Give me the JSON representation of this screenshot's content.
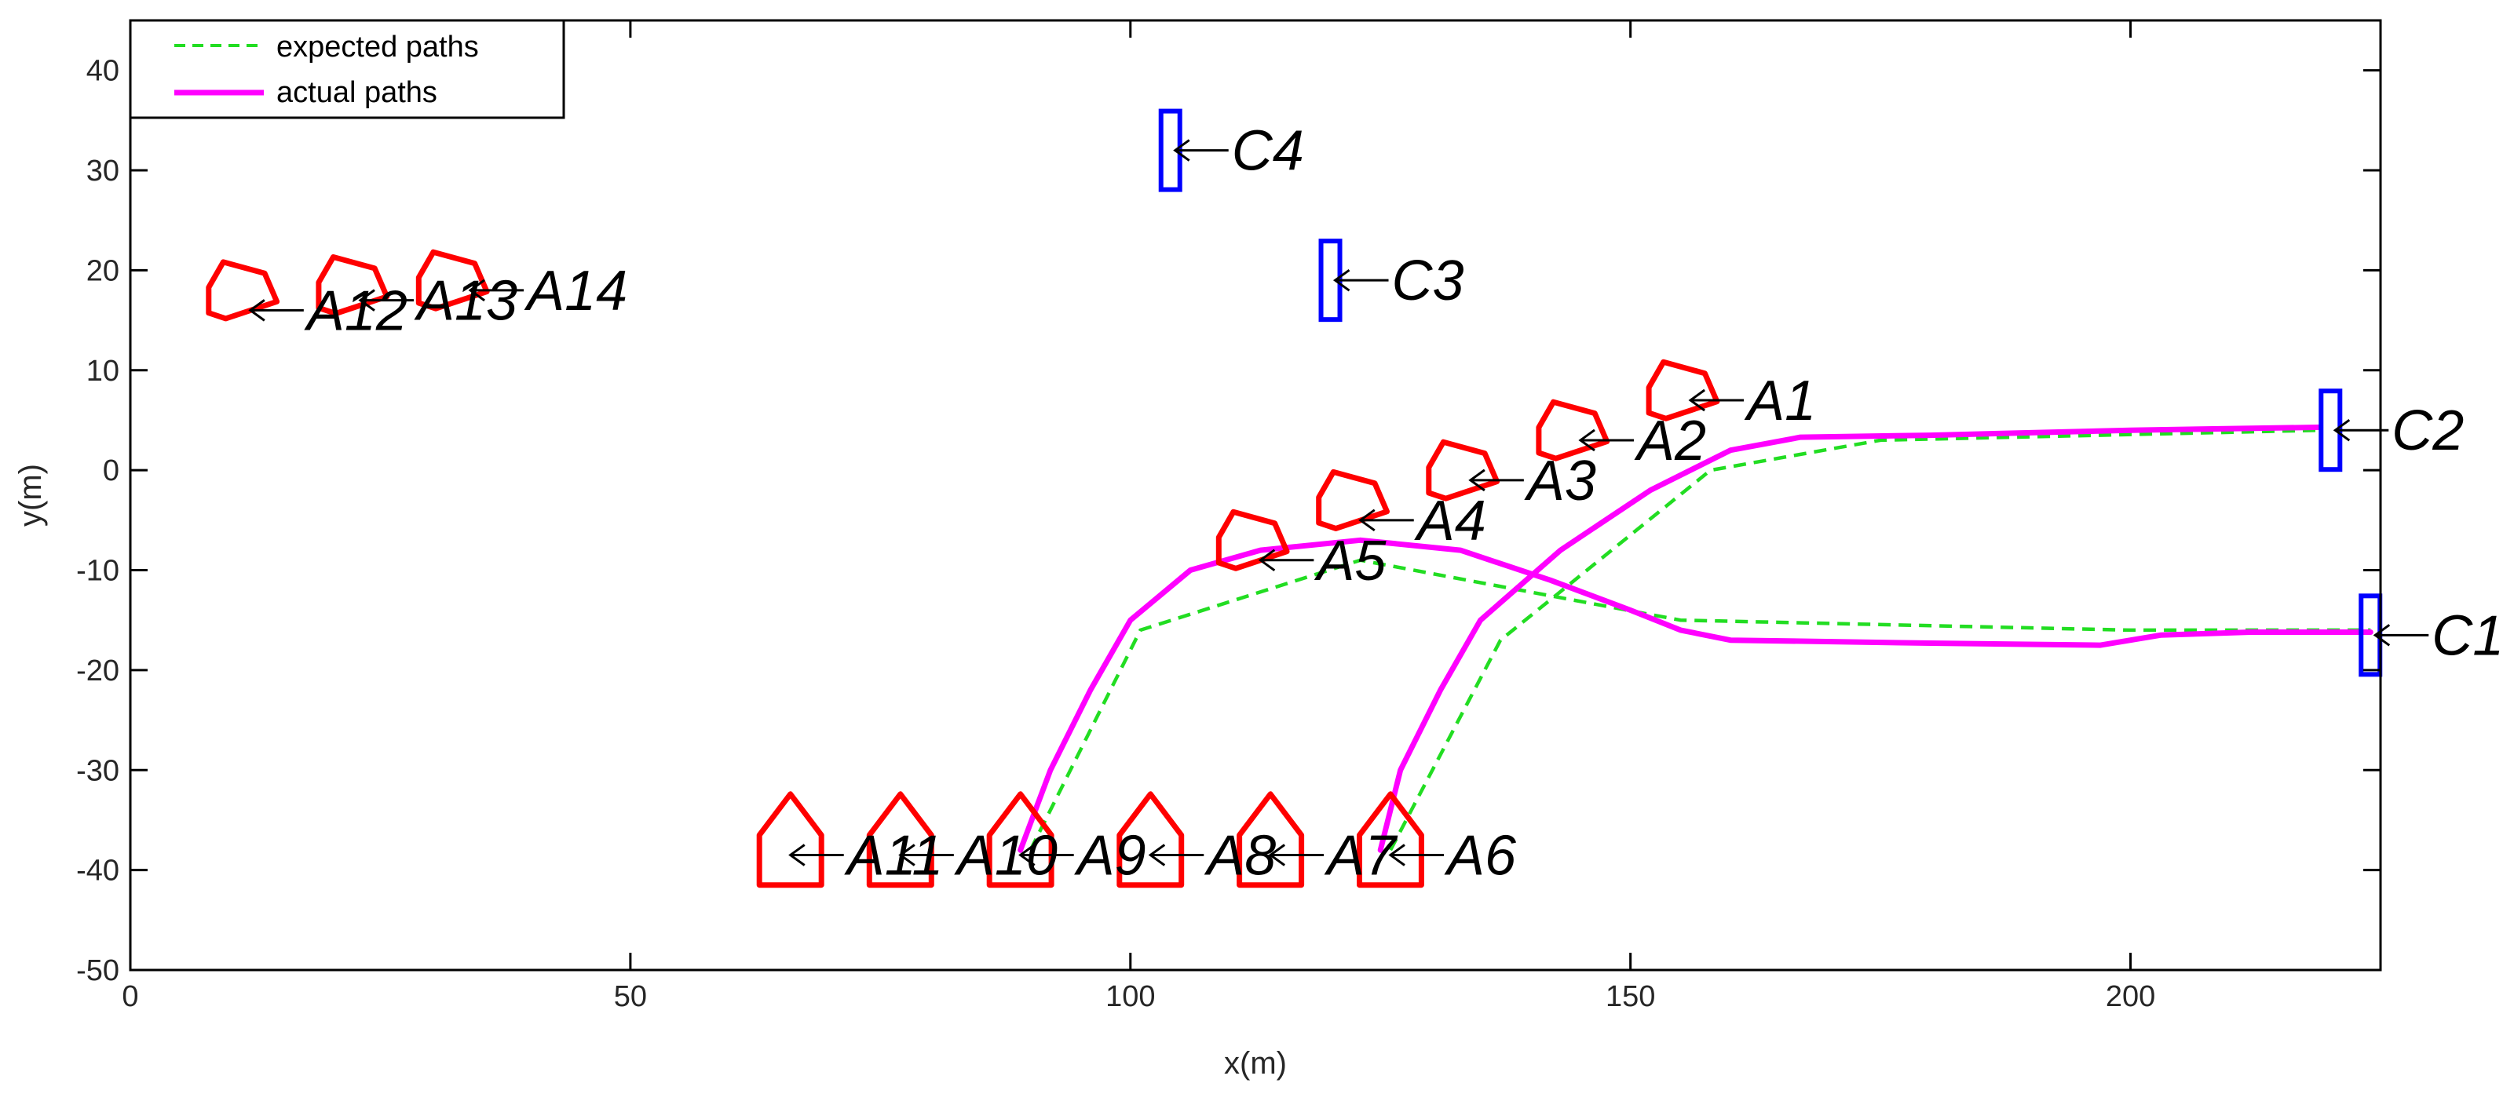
{
  "chart_data": {
    "type": "line",
    "xlabel": "x(m)",
    "ylabel": "y(m)",
    "xlim": [
      0,
      225
    ],
    "ylim": [
      -50,
      45
    ],
    "xticks": [
      0,
      50,
      100,
      150,
      200
    ],
    "yticks": [
      -50,
      -40,
      -30,
      -20,
      -10,
      0,
      10,
      20,
      30,
      40
    ],
    "grid": false,
    "legend": {
      "location": "top-left",
      "entries": [
        {
          "label": "expected paths",
          "style": "dashed",
          "color": "#22dd22"
        },
        {
          "label": "actual paths",
          "style": "solid",
          "color": "#ff00ff"
        }
      ]
    },
    "colors": {
      "agent": "#ff0000",
      "charger": "#0000ff",
      "expected": "#22dd22",
      "actual": "#ff00ff",
      "axes": "#000000"
    },
    "series": [
      {
        "name": "expected paths",
        "style": "dashed",
        "points": [
          [
            90,
            -38
          ],
          [
            101,
            -16
          ],
          [
            123,
            -9
          ],
          [
            155,
            -15
          ],
          [
            200,
            -16
          ],
          [
            224,
            -16
          ]
        ]
      },
      {
        "name": "expected paths",
        "style": "dashed",
        "points": [
          [
            126,
            -38
          ],
          [
            137,
            -17
          ],
          [
            158,
            0
          ],
          [
            175,
            3
          ],
          [
            219,
            4
          ]
        ]
      },
      {
        "name": "actual paths",
        "style": "solid",
        "points": [
          [
            89,
            -38
          ],
          [
            92,
            -30
          ],
          [
            96,
            -22
          ],
          [
            100,
            -15
          ],
          [
            106,
            -10
          ],
          [
            113,
            -8
          ],
          [
            123,
            -7
          ],
          [
            133,
            -8
          ],
          [
            142,
            -11
          ],
          [
            150,
            -14
          ],
          [
            155,
            -16
          ],
          [
            160,
            -17
          ],
          [
            180,
            -17.3
          ],
          [
            197,
            -17.5
          ],
          [
            203,
            -16.5
          ],
          [
            212,
            -16.2
          ],
          [
            224,
            -16.2
          ]
        ]
      },
      {
        "name": "actual paths",
        "style": "solid",
        "points": [
          [
            125,
            -38
          ],
          [
            127,
            -30
          ],
          [
            131,
            -22
          ],
          [
            135,
            -15
          ],
          [
            143,
            -8
          ],
          [
            152,
            -2
          ],
          [
            160,
            2
          ],
          [
            167,
            3.3
          ],
          [
            180,
            3.5
          ],
          [
            200,
            4
          ],
          [
            219,
            4.3
          ]
        ]
      }
    ],
    "agents": [
      {
        "label": "A1",
        "x": 155,
        "y": 8,
        "angle": 0,
        "ax": 156,
        "ay": 7
      },
      {
        "label": "A2",
        "x": 144,
        "y": 4,
        "angle": 0,
        "ax": 145,
        "ay": 3
      },
      {
        "label": "A3",
        "x": 133,
        "y": 0,
        "angle": 0,
        "ax": 134,
        "ay": -1
      },
      {
        "label": "A4",
        "x": 122,
        "y": -3,
        "angle": 0,
        "ax": 123,
        "ay": -5
      },
      {
        "label": "A5",
        "x": 112,
        "y": -7,
        "angle": 0,
        "ax": 113,
        "ay": -9
      },
      {
        "label": "A6",
        "x": 126,
        "y": -38.5,
        "angle": 90,
        "ax": 126,
        "ay": -38.5
      },
      {
        "label": "A7",
        "x": 114,
        "y": -38.5,
        "angle": 90,
        "ax": 114,
        "ay": -38.5
      },
      {
        "label": "A8",
        "x": 102,
        "y": -38.5,
        "angle": 90,
        "ax": 102,
        "ay": -38.5
      },
      {
        "label": "A9",
        "x": 89,
        "y": -38.5,
        "angle": 90,
        "ax": 89,
        "ay": -38.5
      },
      {
        "label": "A10",
        "x": 77,
        "y": -38.5,
        "angle": 90,
        "ax": 77,
        "ay": -38.5
      },
      {
        "label": "A11",
        "x": 66,
        "y": -38.5,
        "angle": 90,
        "ax": 66,
        "ay": -38.5
      },
      {
        "label": "A12",
        "x": 11,
        "y": 18,
        "angle": 0,
        "ax": 12,
        "ay": 16
      },
      {
        "label": "A13",
        "x": 22,
        "y": 18.5,
        "angle": 0,
        "ax": 23,
        "ay": 17
      },
      {
        "label": "A14",
        "x": 32,
        "y": 19,
        "angle": 0,
        "ax": 34,
        "ay": 18
      }
    ],
    "chargers": [
      {
        "label": "C1",
        "x": 224,
        "y": -16.5
      },
      {
        "label": "C2",
        "x": 220,
        "y": 4
      },
      {
        "label": "C3",
        "x": 120,
        "y": 19
      },
      {
        "label": "C4",
        "x": 104,
        "y": 32
      }
    ]
  }
}
